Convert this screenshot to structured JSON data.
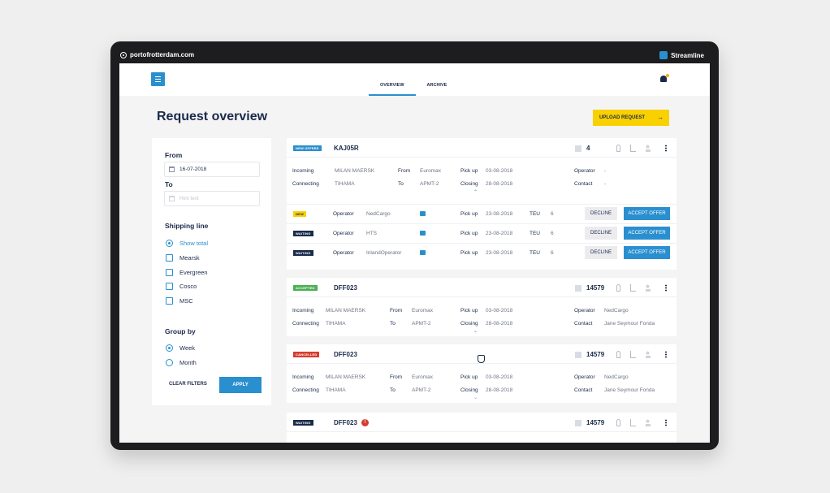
{
  "browser": {
    "url": "portofrotterdam.com",
    "brand": "Streamline"
  },
  "nav": {
    "tabs": [
      "OVERVIEW",
      "ARCHIVE"
    ]
  },
  "page": {
    "title": "Request overview",
    "upload_label": "UPLOAD REQUEST"
  },
  "filters": {
    "from_label": "From",
    "from_value": "16-07-2018",
    "to_label": "To",
    "to_placeholder": "Hint text",
    "shipping_label": "Shipping line",
    "shipping_options": [
      "Show total",
      "Mearsk",
      "Evergreen",
      "Cosco",
      "MSC"
    ],
    "group_label": "Group by",
    "group_options": [
      "Week",
      "Month"
    ],
    "clear_label": "CLEAR FILTERS",
    "apply_label": "APPLY"
  },
  "labels": {
    "incoming": "Incoming",
    "connecting": "Connecting",
    "from": "From",
    "to": "To",
    "pickup": "Pick up",
    "closing": "Closing",
    "operator": "Operator",
    "contact": "Contact",
    "teu": "TEU",
    "decline": "DECLINE",
    "accept": "ACCEPT OFFER"
  },
  "cards": [
    {
      "status": "NEW OFFERS",
      "id": "KAJ05R",
      "count": "4",
      "incoming": "MILAN MAERSK",
      "connecting": "TIHAMA",
      "from": "Euromax",
      "to": "APMT-2",
      "pickup": "03-08-2018",
      "closing": "28-08-2018",
      "operator": "-",
      "contact": "-",
      "offers": [
        {
          "status": "NEW",
          "operator": "NedCargo",
          "pickup": "23-08-2018",
          "teu": "6"
        },
        {
          "status": "WAITING",
          "operator": "HTS",
          "pickup": "23-08-2018",
          "teu": "6"
        },
        {
          "status": "WAITING",
          "operator": "InlandOperator",
          "pickup": "23-08-2018",
          "teu": "6"
        }
      ]
    },
    {
      "status": "ACCEPTED",
      "id": "DFF023",
      "count": "14579",
      "incoming": "MILAN MAERSK",
      "connecting": "TIHAMA",
      "from": "Euromax",
      "to": "APMT-2",
      "pickup": "03-08-2018",
      "closing": "28-08-2018",
      "operator": "NedCargo",
      "contact": "Jane Seymour Fonda"
    },
    {
      "status": "CANCELLED",
      "id": "DFF023",
      "count": "14579",
      "incoming": "MILAN MAERSK",
      "connecting": "TIHAMA",
      "from": "Euromax",
      "to": "APMT-2",
      "pickup": "03-08-2018",
      "closing": "28-08-2018",
      "operator": "NedCargo",
      "contact": "Jane Seymour Fonda"
    },
    {
      "status": "WAITING",
      "id": "DFF023",
      "count": "14579"
    }
  ],
  "colors": {
    "accent": "#2a8fcf",
    "navy": "#1b2a4a",
    "yellow": "#f9d000",
    "green": "#4caf50",
    "red": "#d63b2f"
  }
}
